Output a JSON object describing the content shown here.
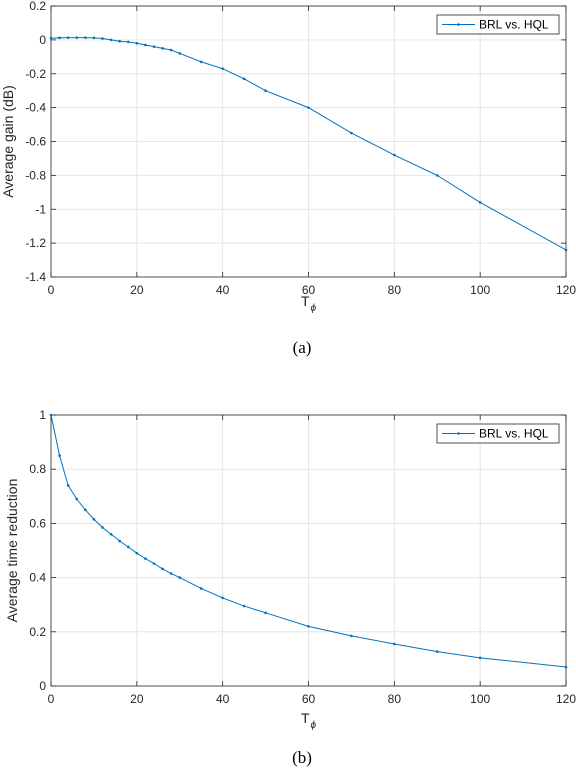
{
  "figure": {
    "captions": [
      "(a)",
      "(b)"
    ]
  },
  "style": {
    "series_color": "#0072BD",
    "grid_color": "#e6e6e6",
    "axis_color": "#262626"
  },
  "chart_data": [
    {
      "type": "line",
      "xlabel": "T",
      "xlabel_subscript": "ϕ",
      "ylabel": "Average gain (dB)",
      "xlim": [
        0,
        120
      ],
      "ylim": [
        -1.4,
        0.2
      ],
      "xticks": [
        0,
        20,
        40,
        60,
        80,
        100,
        120
      ],
      "yticks": [
        0.2,
        0,
        -0.2,
        -0.4,
        -0.6,
        -0.8,
        -1,
        -1.2,
        -1.4
      ],
      "ytick_labels": [
        "0.2",
        "0",
        "-0.2",
        "-0.4",
        "-0.6",
        "-0.8",
        "-1",
        "-1.2",
        "-1.4"
      ],
      "grid": true,
      "legend_position": "top-right",
      "series": [
        {
          "name": "BRL vs. HQL",
          "x": [
            0,
            2,
            4,
            6,
            8,
            10,
            12,
            14,
            16,
            18,
            20,
            22,
            24,
            26,
            28,
            30,
            35,
            40,
            45,
            50,
            60,
            70,
            80,
            90,
            100,
            120
          ],
          "y": [
            0.01,
            0.012,
            0.013,
            0.013,
            0.013,
            0.012,
            0.008,
            0.0,
            -0.008,
            -0.012,
            -0.02,
            -0.03,
            -0.04,
            -0.05,
            -0.06,
            -0.08,
            -0.13,
            -0.17,
            -0.23,
            -0.3,
            -0.4,
            -0.55,
            -0.68,
            -0.8,
            -0.96,
            -1.24
          ]
        }
      ]
    },
    {
      "type": "line",
      "xlabel": "T",
      "xlabel_subscript": "ϕ",
      "ylabel": "Average time reduction",
      "xlim": [
        0,
        120
      ],
      "ylim": [
        0,
        1
      ],
      "xticks": [
        0,
        20,
        40,
        60,
        80,
        100,
        120
      ],
      "yticks": [
        0,
        0.2,
        0.4,
        0.6,
        0.8,
        1
      ],
      "ytick_labels": [
        "0",
        "0.2",
        "0.4",
        "0.6",
        "0.8",
        "1"
      ],
      "grid": true,
      "legend_position": "top-right",
      "series": [
        {
          "name": "BRL vs. HQL",
          "x": [
            0,
            2,
            4,
            6,
            8,
            10,
            12,
            14,
            16,
            18,
            20,
            22,
            24,
            26,
            28,
            30,
            35,
            40,
            45,
            50,
            60,
            70,
            80,
            90,
            100,
            120
          ],
          "y": [
            1.0,
            0.85,
            0.74,
            0.69,
            0.65,
            0.615,
            0.585,
            0.56,
            0.535,
            0.513,
            0.49,
            0.47,
            0.452,
            0.432,
            0.415,
            0.4,
            0.36,
            0.325,
            0.295,
            0.27,
            0.22,
            0.185,
            0.155,
            0.127,
            0.104,
            0.07
          ]
        }
      ]
    }
  ]
}
